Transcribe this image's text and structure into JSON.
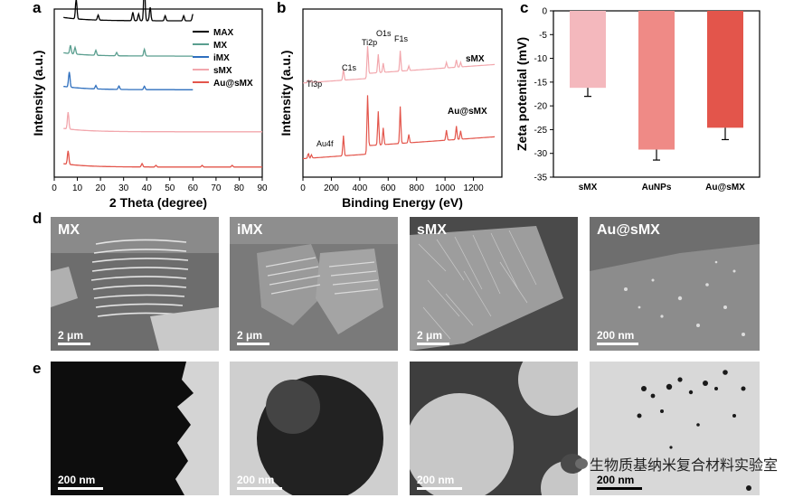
{
  "panel_labels": {
    "a": "a",
    "b": "b",
    "c": "c",
    "d": "d",
    "e": "e"
  },
  "chart_data": [
    {
      "type": "line",
      "xlabel": "2 Theta (degree)",
      "ylabel": "Intensity (a.u.)",
      "xlim": [
        0,
        90
      ],
      "x_ticks": [
        "0",
        "10",
        "20",
        "30",
        "40",
        "50",
        "60",
        "70",
        "80",
        "90"
      ],
      "series": [
        {
          "name": "MAX",
          "color": "#000000",
          "offset": 0.93,
          "peaks": [
            [
              9.5,
              0.12
            ],
            [
              19,
              0.03
            ],
            [
              34,
              0.05
            ],
            [
              36.5,
              0.04
            ],
            [
              39,
              0.22
            ],
            [
              41.5,
              0.08
            ],
            [
              48,
              0.03
            ],
            [
              56,
              0.03
            ],
            [
              60,
              0.04
            ]
          ]
        },
        {
          "name": "MX",
          "color": "#5a9e8f",
          "offset": 0.72,
          "peaks": [
            [
              7,
              0.05
            ],
            [
              9,
              0.04
            ],
            [
              18,
              0.03
            ],
            [
              27,
              0.02
            ],
            [
              39,
              0.04
            ],
            [
              61,
              0.01
            ]
          ]
        },
        {
          "name": "iMX",
          "color": "#2e6fbe",
          "offset": 0.52,
          "peaks": [
            [
              6.5,
              0.09
            ],
            [
              18,
              0.02
            ],
            [
              28,
              0.02
            ],
            [
              39,
              0.02
            ]
          ]
        },
        {
          "name": "sMX",
          "color": "#f2a7ad",
          "offset": 0.27,
          "peaks": [
            [
              6,
              0.1
            ]
          ]
        },
        {
          "name": "Au@sMX",
          "color": "#e3554b",
          "offset": 0.06,
          "peaks": [
            [
              6,
              0.08
            ],
            [
              38,
              0.02
            ],
            [
              44,
              0.01
            ],
            [
              64,
              0.01
            ],
            [
              77,
              0.01
            ]
          ]
        }
      ]
    },
    {
      "type": "line",
      "xlabel": "Binding Energy (eV)",
      "ylabel": "Intensity (a.u.)",
      "xlim": [
        0,
        1400
      ],
      "x_ticks": [
        "0",
        "200",
        "400",
        "600",
        "800",
        "1000",
        "1200"
      ],
      "series": [
        {
          "name": "sMX",
          "color": "#f2a7ad",
          "offset": 0.55
        },
        {
          "name": "Au@sMX",
          "color": "#e3554b",
          "offset": 0.1
        }
      ],
      "annotations": [
        "Ti3p",
        "C1s",
        "Ti2p",
        "O1s",
        "F1s",
        "Au4f"
      ]
    },
    {
      "type": "bar",
      "categories": [
        "sMX",
        "AuNPs",
        "Au@sMX"
      ],
      "values": [
        -16.2,
        -29.2,
        -24.6
      ],
      "errors": [
        1.8,
        2.2,
        2.5
      ],
      "colors": [
        "#f4b8bd",
        "#ef8a86",
        "#e3554b"
      ],
      "ylabel": "Zeta potential (mV)",
      "ylim": [
        -35,
        0
      ],
      "y_ticks": [
        "0",
        "-5",
        "-10",
        "-15",
        "-20",
        "-25",
        "-30",
        "-35"
      ]
    }
  ],
  "sem": [
    {
      "label": "MX",
      "scale": "2 μm"
    },
    {
      "label": "iMX",
      "scale": "2 μm"
    },
    {
      "label": "sMX",
      "scale": "2 μm"
    },
    {
      "label": "Au@sMX",
      "scale": "200 nm"
    }
  ],
  "tem": [
    {
      "scale": "200 nm"
    },
    {
      "scale": "200 nm"
    },
    {
      "scale": "200 nm"
    },
    {
      "scale": "200 nm"
    }
  ],
  "watermark": {
    "text": "生物质基纳米复合材料实验室"
  }
}
